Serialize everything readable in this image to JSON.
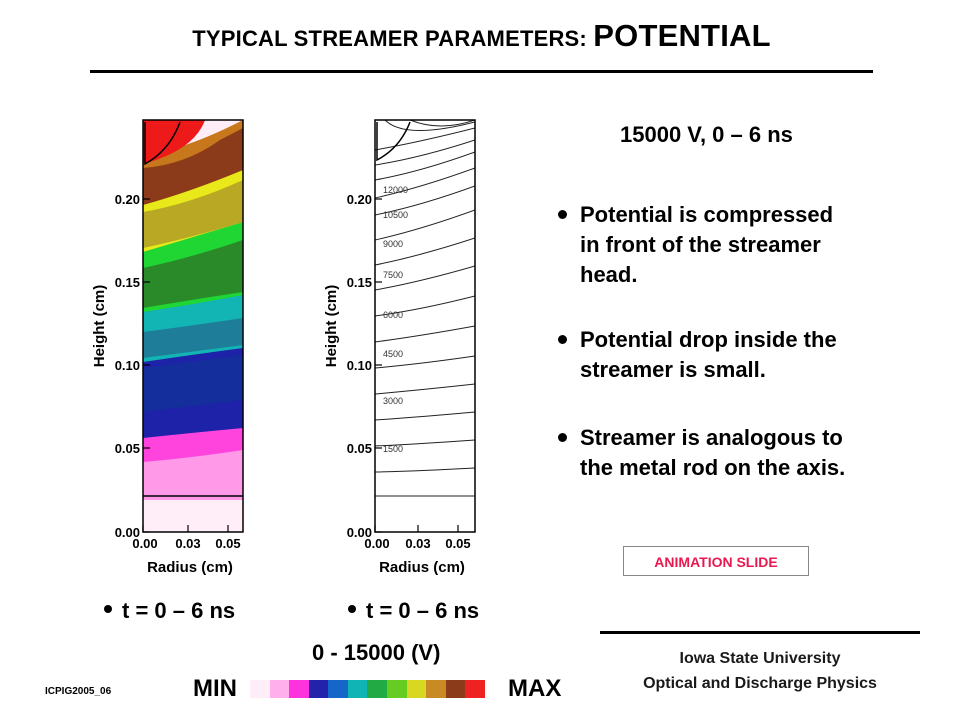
{
  "title": {
    "prefix": "TYPICAL STREAMER PARAMETERS: ",
    "main": "POTENTIAL"
  },
  "subtitle": "15000 V,  0 – 6 ns",
  "bullets": [
    {
      "lines": [
        "Potential is compressed",
        "in front of the streamer",
        "head."
      ]
    },
    {
      "lines": [
        "Potential drop inside the",
        "streamer is small."
      ]
    },
    {
      "lines": [
        "Streamer is analogous to",
        "the metal rod on the axis."
      ]
    }
  ],
  "animation_label": "ANIMATION SLIDE",
  "institution": {
    "name": "Iowa State University",
    "group": "Optical and Discharge Physics"
  },
  "plots": {
    "ylabel": "Height (cm)",
    "xlabel": "Radius (cm)",
    "yticks": [
      "0.00",
      "0.05",
      "0.10",
      "0.15",
      "0.20"
    ],
    "xticks": [
      "0.00",
      "0.03",
      "0.05"
    ],
    "contour_labels": [
      "12000",
      "10500",
      "9000",
      "7500",
      "6000",
      "4500",
      "3000",
      "1500"
    ]
  },
  "time_labels": [
    "t = 0 – 6 ns",
    "t = 0 – 6 ns"
  ],
  "range_label": "0 - 15000 (V)",
  "min_label": "MIN",
  "max_label": "MAX",
  "colorbar_colors": [
    "#ffeef8",
    "#ffb0ec",
    "#ff33dd",
    "#2222aa",
    "#1566c8",
    "#10b4b4",
    "#22aa44",
    "#66cc22",
    "#d8d822",
    "#c88a22",
    "#8b3a1a",
    "#ee2222"
  ],
  "footer_id": "ICPIG2005_06"
}
